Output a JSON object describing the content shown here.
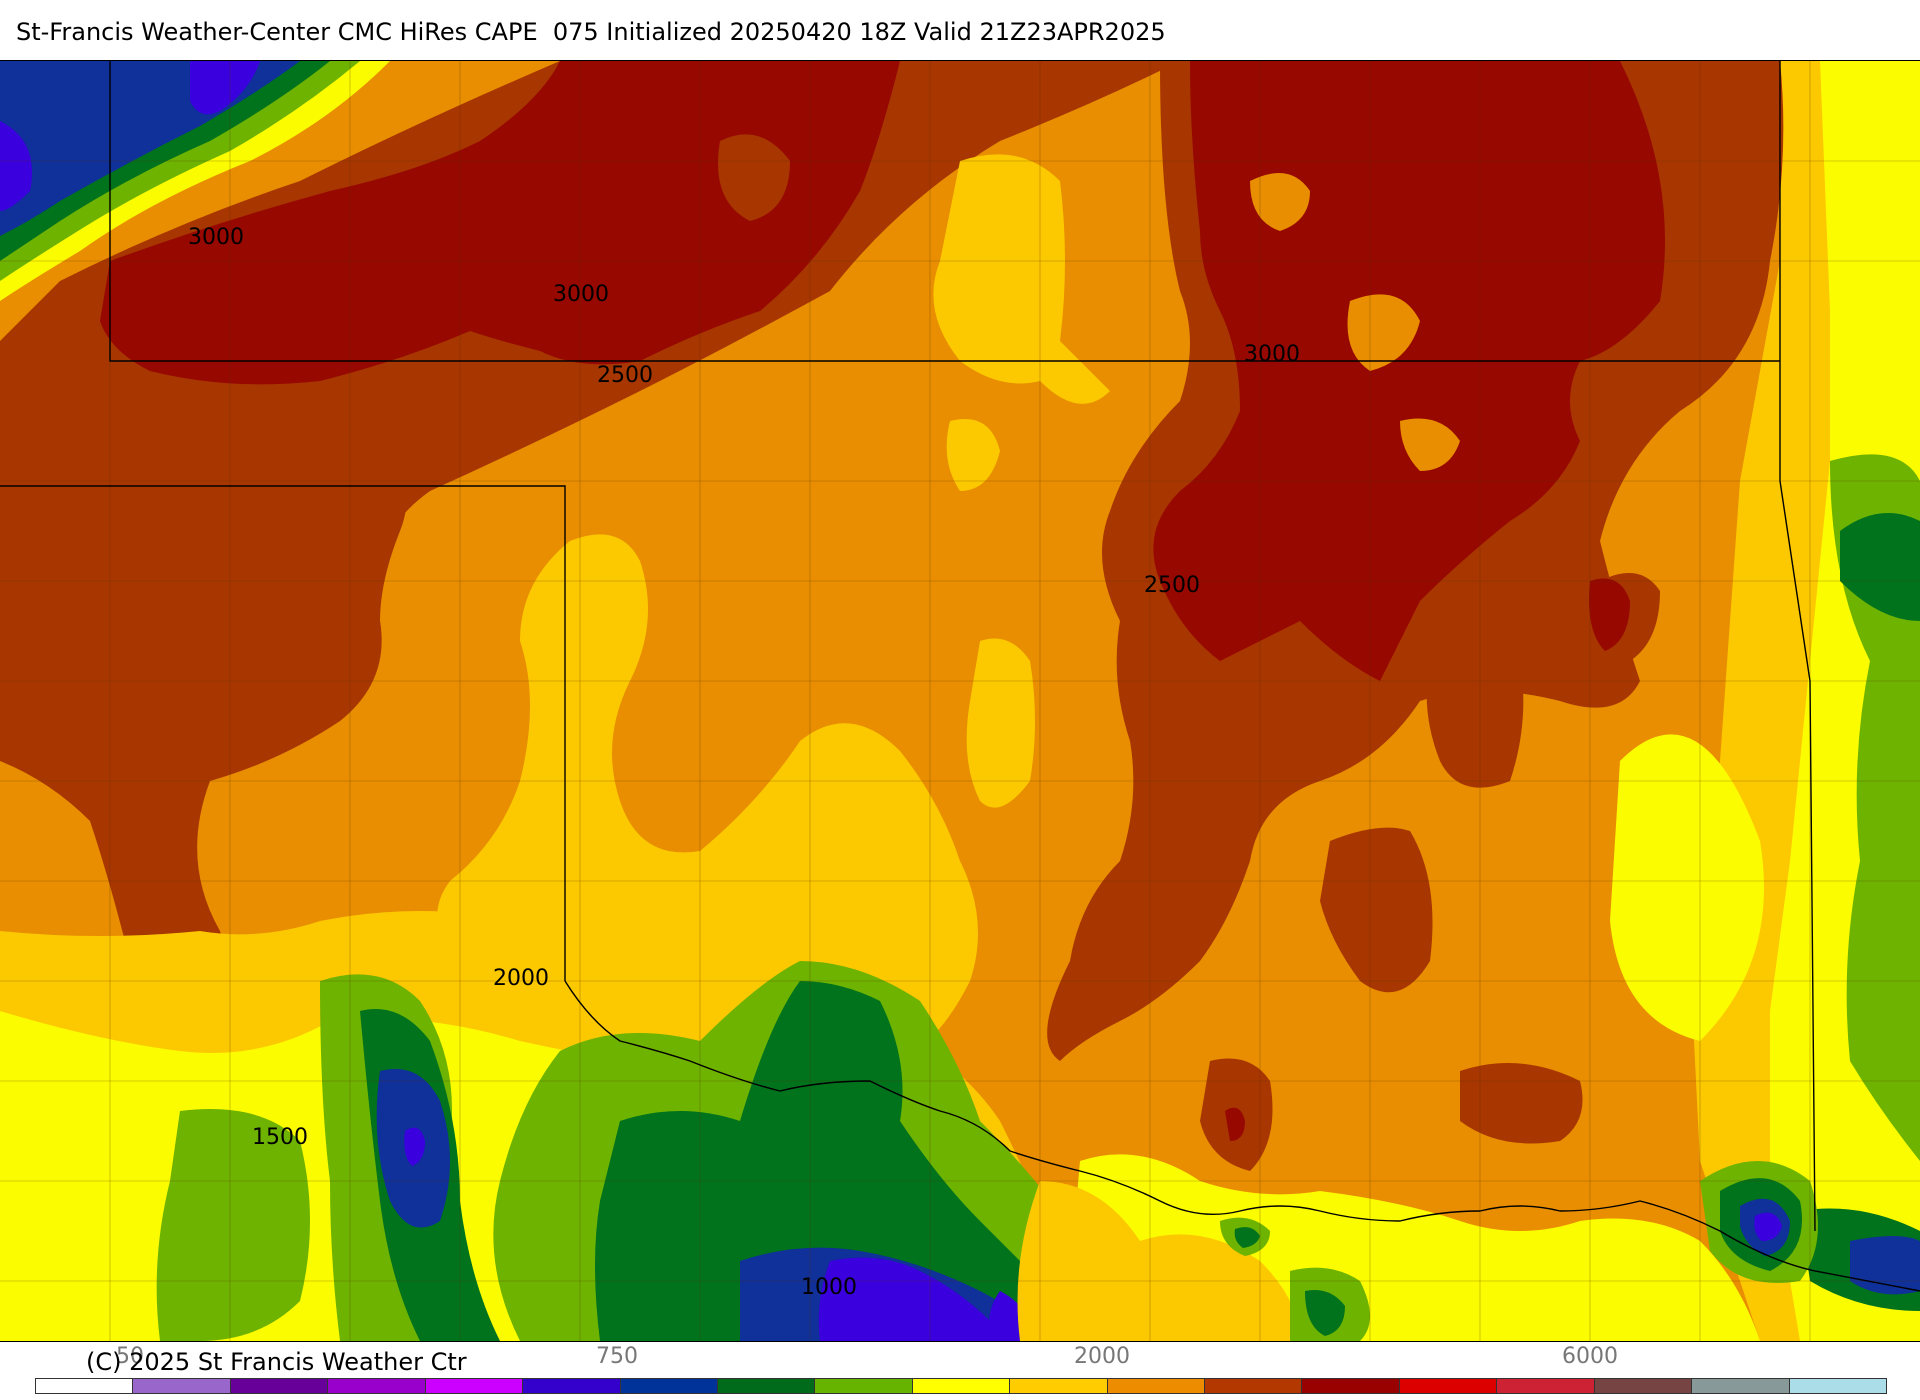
{
  "header": {
    "title": "St-Francis Weather-Center CMC HiRes CAPE  075 Initialized 20250420 18Z Valid 21Z23APR2025"
  },
  "map": {
    "contour_labels": [
      "3000",
      "3000",
      "2500",
      "3000",
      "2500",
      "2000",
      "1500",
      "1000"
    ]
  },
  "footer": {
    "copyright": "(C) 2025 St Francis Weather Ctr",
    "scale_labels": [
      "50",
      "750",
      "2000",
      "6000"
    ]
  },
  "colorbar": {
    "colors": [
      "#ffffff",
      "#9966cc",
      "#660099",
      "#9900cc",
      "#cc00ff",
      "#3300cc",
      "#003399",
      "#006b1a",
      "#66b300",
      "#ffff00",
      "#ffcc00",
      "#ee8c00",
      "#b33800",
      "#990000",
      "#dd0000",
      "#cc2233",
      "#774444",
      "#889999",
      "#aadde8"
    ]
  },
  "palette": {
    "deep_red": "#960800",
    "brown": "#a83600",
    "dark_orange": "#e88e00",
    "orange": "#f0a000",
    "gold": "#fcc800",
    "yellow": "#fcfc00",
    "lime": "#6db300",
    "green": "#00731c",
    "navy": "#10309a",
    "purple": "#3a00dd"
  }
}
